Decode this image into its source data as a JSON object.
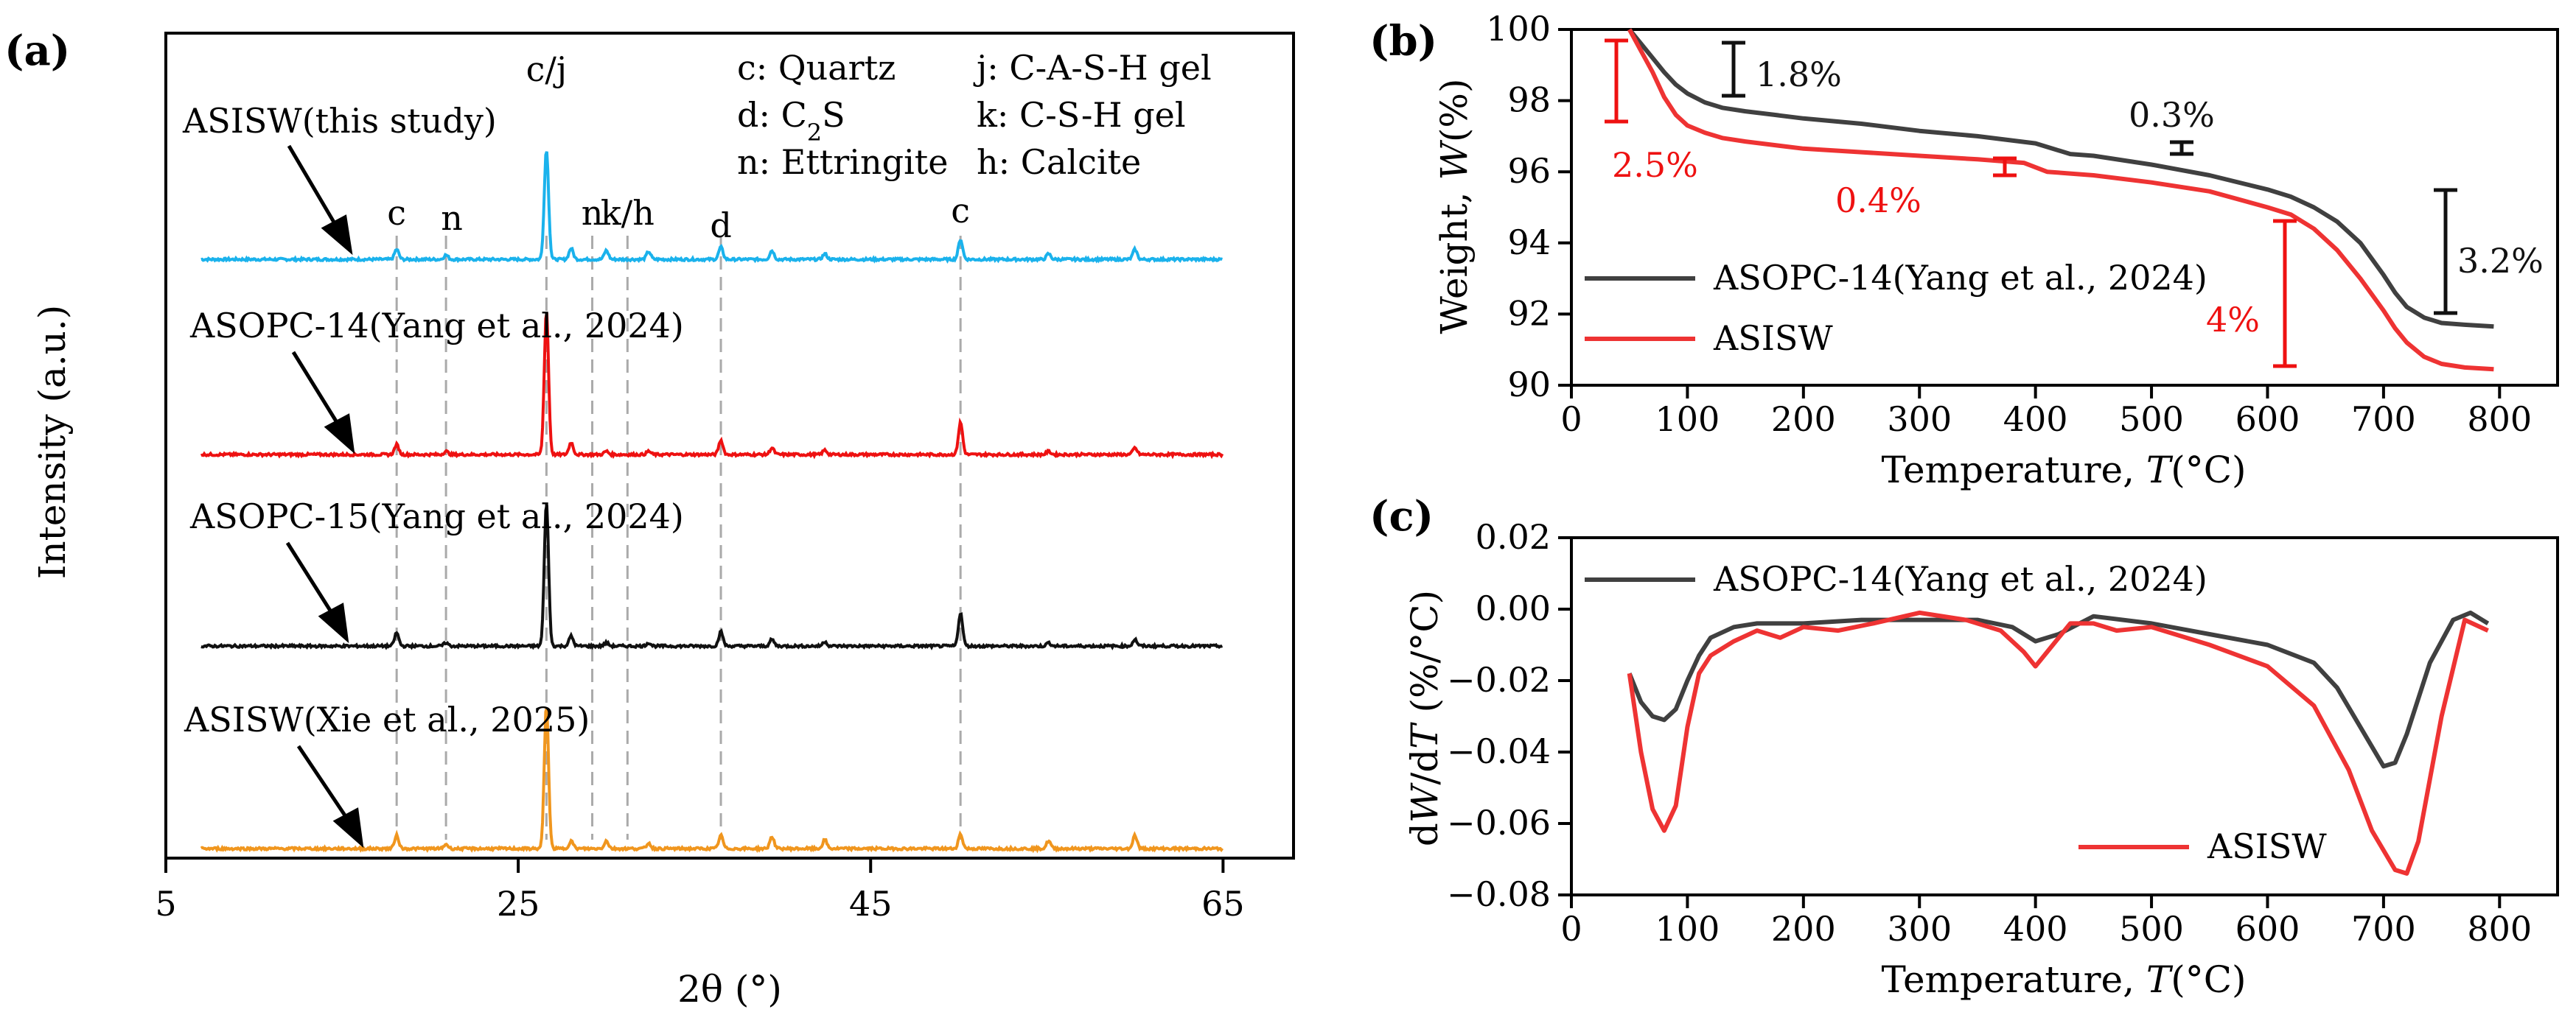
{
  "figure": {
    "panel_labels": {
      "a": "(a)",
      "b": "(b)",
      "c": "(c)"
    }
  },
  "chart_data": [
    {
      "id": "a",
      "type": "line",
      "title": "",
      "xlabel": "2θ (°)",
      "ylabel": "Intensity (a.u.)",
      "xlim": [
        5,
        69
      ],
      "xticks": [
        5,
        25,
        45,
        65
      ],
      "x_range": [
        7,
        65
      ],
      "peaks_2theta": [
        18.1,
        20.9,
        26.6,
        28.0,
        30.0,
        32.4,
        36.5,
        39.4,
        42.4,
        50.1,
        55.1,
        60.0
      ],
      "series": [
        {
          "name": "ASISW(this study)",
          "color": "#1ab2ec",
          "intensity": [
            0.9,
            0.4,
            10,
            1.0,
            0.8,
            0.7,
            1.1,
            0.8,
            0.5,
            1.8,
            0.5,
            0.9
          ]
        },
        {
          "name": "ASOPC-14(Yang et al., 2024)",
          "color": "#ee1111",
          "intensity": [
            0.9,
            0.3,
            13,
            1.1,
            0.3,
            0.3,
            1.3,
            0.6,
            0.4,
            2.9,
            0.3,
            0.6
          ]
        },
        {
          "name": "ASOPC-15(Yang et al., 2024)",
          "color": "#111111",
          "intensity": [
            1.2,
            0.3,
            13,
            0.9,
            0.3,
            0.3,
            1.3,
            0.6,
            0.4,
            3.0,
            0.3,
            0.6
          ]
        },
        {
          "name": "ASISW(Xie et al., 2025)",
          "color": "#f0961e",
          "intensity": [
            1.2,
            0.4,
            13,
            0.7,
            0.7,
            0.5,
            1.2,
            1.1,
            0.8,
            1.3,
            0.7,
            1.2
          ]
        }
      ],
      "reference_lines_2theta": [
        18.1,
        20.9,
        26.6,
        29.2,
        31.2,
        36.5,
        50.1
      ],
      "peak_labels": [
        {
          "text": "c/j",
          "at": 26.6
        },
        {
          "text": "c",
          "at": 18.1
        },
        {
          "text": "n",
          "at": 20.9
        },
        {
          "text": "n",
          "at": 29.2
        },
        {
          "text": "k/h",
          "at": 31.2
        },
        {
          "text": "d",
          "at": 36.5
        },
        {
          "text": "c",
          "at": 50.1
        }
      ],
      "legend": [
        {
          "key": "c",
          "label": "Quartz"
        },
        {
          "key": "j",
          "label": "C-A-S-H gel"
        },
        {
          "key": "d",
          "label": "C₂S"
        },
        {
          "key": "k",
          "label": "C-S-H gel"
        },
        {
          "key": "n",
          "label": "Ettringite"
        },
        {
          "key": "h",
          "label": "Calcite"
        }
      ],
      "legend_text": {
        "c": "c: Quartz",
        "j": "j: C-A-S-H gel",
        "d_prefix": "d: C",
        "d_sub": "2",
        "d_suffix": "S",
        "k": "k: C-S-H gel",
        "n": "n: Ettringite",
        "h": "h: Calcite"
      }
    },
    {
      "id": "b",
      "type": "line",
      "title": "",
      "xlabel": "Temperature, T(°C)",
      "ylabel": "Weight, W(%)",
      "xlim": [
        0,
        850
      ],
      "ylim": [
        90,
        100
      ],
      "xticks": [
        0,
        100,
        200,
        300,
        400,
        500,
        600,
        700,
        800
      ],
      "yticks": [
        90,
        92,
        94,
        96,
        98,
        100
      ],
      "legend_position": "bottom-left",
      "series": [
        {
          "name": "ASOPC-14(Yang et al., 2024)",
          "color": "#404040",
          "x": [
            50,
            60,
            70,
            80,
            90,
            100,
            115,
            130,
            150,
            175,
            200,
            250,
            300,
            350,
            400,
            430,
            450,
            500,
            550,
            600,
            620,
            640,
            660,
            680,
            700,
            710,
            720,
            735,
            750,
            770,
            795
          ],
          "y": [
            100,
            99.6,
            99.2,
            98.8,
            98.45,
            98.2,
            97.95,
            97.8,
            97.7,
            97.6,
            97.5,
            97.35,
            97.15,
            97.0,
            96.8,
            96.5,
            96.45,
            96.2,
            95.9,
            95.5,
            95.3,
            95.0,
            94.6,
            94.0,
            93.1,
            92.6,
            92.2,
            91.9,
            91.75,
            91.7,
            91.65
          ]
        },
        {
          "name": "ASISW",
          "color": "#ee3333",
          "x": [
            50,
            60,
            70,
            80,
            90,
            100,
            115,
            130,
            150,
            175,
            200,
            250,
            300,
            350,
            390,
            410,
            450,
            500,
            550,
            600,
            620,
            640,
            660,
            680,
            700,
            710,
            720,
            735,
            750,
            770,
            795
          ],
          "y": [
            100,
            99.4,
            98.8,
            98.1,
            97.6,
            97.3,
            97.1,
            96.95,
            96.85,
            96.75,
            96.65,
            96.55,
            96.45,
            96.35,
            96.25,
            96.0,
            95.9,
            95.7,
            95.45,
            95.0,
            94.8,
            94.4,
            93.8,
            93.0,
            92.1,
            91.6,
            91.2,
            90.8,
            90.6,
            90.5,
            90.45
          ]
        }
      ],
      "annotations": [
        {
          "text": "1.8%",
          "color": "#111111"
        },
        {
          "text": "0.3%",
          "color": "#111111"
        },
        {
          "text": "3.2%",
          "color": "#111111"
        },
        {
          "text": "2.5%",
          "color": "#ee1111"
        },
        {
          "text": "0.4%",
          "color": "#ee1111"
        },
        {
          "text": "4%",
          "color": "#ee1111"
        }
      ]
    },
    {
      "id": "c",
      "type": "line",
      "title": "",
      "xlabel": "Temperature, T(°C)",
      "ylabel": "dW/dT (%/°C)",
      "xlim": [
        0,
        850
      ],
      "ylim": [
        -0.08,
        0.02
      ],
      "xticks": [
        0,
        100,
        200,
        300,
        400,
        500,
        600,
        700,
        800
      ],
      "yticks": [
        -0.08,
        -0.06,
        -0.04,
        -0.02,
        0.0,
        0.02
      ],
      "ytick_labels": [
        "−0.08",
        "−0.06",
        "−0.04",
        "−0.02",
        "0.00",
        "0.02"
      ],
      "series": [
        {
          "name": "ASOPC-14(Yang et al., 2024)",
          "color": "#404040",
          "x": [
            50,
            60,
            70,
            80,
            90,
            100,
            110,
            120,
            140,
            160,
            200,
            250,
            300,
            350,
            380,
            400,
            420,
            450,
            500,
            550,
            600,
            640,
            660,
            680,
            700,
            710,
            720,
            740,
            760,
            775,
            790
          ],
          "y": [
            -0.018,
            -0.026,
            -0.03,
            -0.031,
            -0.028,
            -0.02,
            -0.013,
            -0.008,
            -0.005,
            -0.004,
            -0.004,
            -0.003,
            -0.003,
            -0.003,
            -0.005,
            -0.009,
            -0.007,
            -0.002,
            -0.004,
            -0.007,
            -0.01,
            -0.015,
            -0.022,
            -0.033,
            -0.044,
            -0.043,
            -0.035,
            -0.015,
            -0.003,
            -0.001,
            -0.004
          ]
        },
        {
          "name": "ASISW",
          "color": "#ee3333",
          "x": [
            50,
            60,
            70,
            80,
            90,
            100,
            110,
            120,
            140,
            160,
            180,
            200,
            230,
            260,
            300,
            340,
            370,
            390,
            400,
            410,
            430,
            450,
            470,
            500,
            550,
            600,
            640,
            670,
            690,
            710,
            720,
            730,
            750,
            770,
            790
          ],
          "y": [
            -0.018,
            -0.04,
            -0.056,
            -0.062,
            -0.055,
            -0.033,
            -0.018,
            -0.013,
            -0.009,
            -0.006,
            -0.008,
            -0.005,
            -0.006,
            -0.004,
            -0.001,
            -0.003,
            -0.006,
            -0.012,
            -0.016,
            -0.012,
            -0.004,
            -0.004,
            -0.006,
            -0.005,
            -0.01,
            -0.016,
            -0.027,
            -0.045,
            -0.062,
            -0.073,
            -0.074,
            -0.065,
            -0.03,
            -0.003,
            -0.006
          ]
        }
      ],
      "legend_position": "top-left / bottom-right"
    }
  ]
}
